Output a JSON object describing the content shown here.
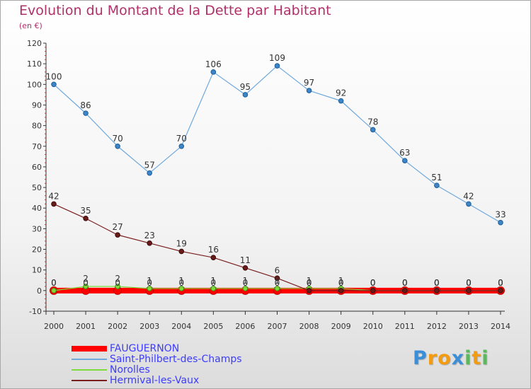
{
  "title": "Evolution du Montant de la Dette par Habitant",
  "subtitle": "(en €)",
  "logo": {
    "text": "Proxiti",
    "letters": [
      "P",
      "r",
      "o",
      "x",
      "i",
      "t",
      "i"
    ],
    "colors": [
      "#3b8fd8",
      "#f39c12",
      "#f39c12",
      "#3b8fd8",
      "#5cb85c",
      "#f39c12",
      "#5cb85c"
    ]
  },
  "chart_data": {
    "type": "line",
    "x": [
      "2000",
      "2001",
      "2002",
      "2003",
      "2004",
      "2005",
      "2006",
      "2007",
      "2008",
      "2009",
      "2010",
      "2011",
      "2012",
      "2013",
      "2014"
    ],
    "ylim": [
      -10,
      120
    ],
    "yticks": [
      -10,
      0,
      10,
      20,
      30,
      40,
      50,
      60,
      70,
      80,
      90,
      100,
      110,
      120
    ],
    "grid": false,
    "legend_position": "bottom-left",
    "series": [
      {
        "name": "FAUGUERNON",
        "color": "#ff0000",
        "values": [
          0,
          0,
          0,
          0,
          0,
          0,
          0,
          0,
          0,
          0,
          0,
          0,
          0,
          0,
          0
        ],
        "labels": [
          "0",
          "0",
          "0",
          "0",
          "0",
          "0",
          "0",
          "0",
          "0",
          "0",
          "0",
          "0",
          "0",
          "0",
          "0"
        ]
      },
      {
        "name": "Saint-Philbert-des-Champs",
        "color": "#6fa8dc",
        "values": [
          100,
          86,
          70,
          57,
          70,
          106,
          95,
          109,
          97,
          92,
          78,
          63,
          51,
          42,
          33
        ],
        "labels": [
          "100",
          "86",
          "70",
          "57",
          "70",
          "106",
          "95",
          "109",
          "97",
          "92",
          "78",
          "63",
          "51",
          "42",
          "33"
        ]
      },
      {
        "name": "Norolles",
        "color": "#7ddc3c",
        "values": [
          0,
          2,
          2,
          1,
          1,
          1,
          1,
          1,
          1,
          1,
          0,
          0,
          0,
          0,
          0
        ],
        "labels": [
          "0",
          "2",
          "2",
          "1",
          "1",
          "1",
          "1",
          "1",
          "1",
          "1",
          "0",
          "0",
          "0",
          "0",
          "0"
        ]
      },
      {
        "name": "Hermival-les-Vaux",
        "color": "#7a1f1f",
        "values": [
          42,
          35,
          27,
          23,
          19,
          16,
          11,
          6,
          0,
          0,
          0,
          0,
          0,
          0,
          0
        ],
        "labels": [
          "42",
          "35",
          "27",
          "23",
          "19",
          "16",
          "11",
          "6",
          "0",
          "0",
          "0",
          "0",
          "0",
          "0",
          "0"
        ]
      }
    ]
  }
}
